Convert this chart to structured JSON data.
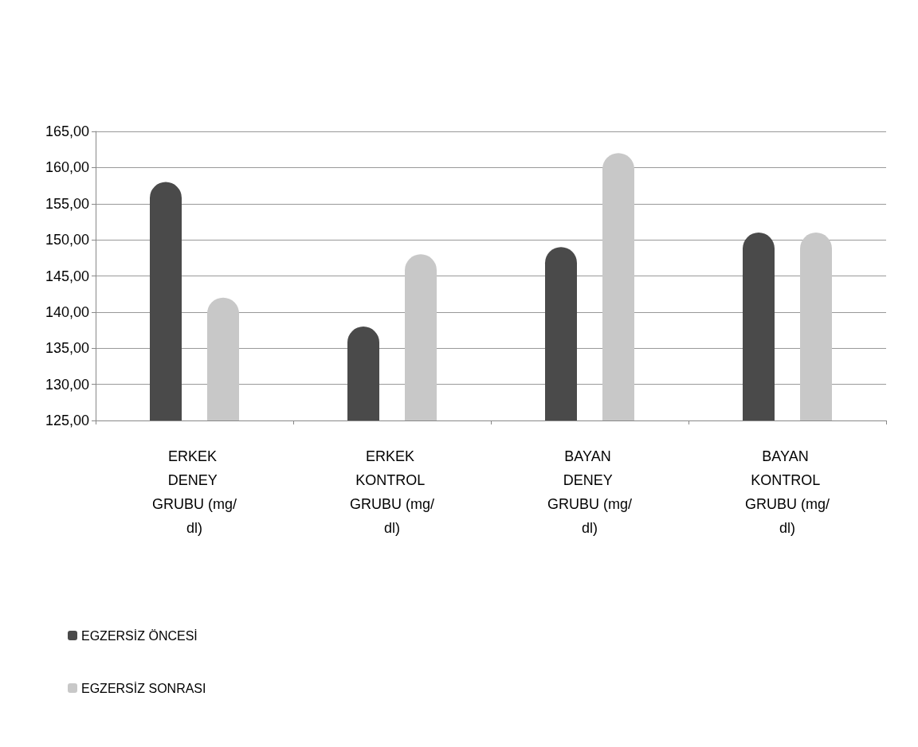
{
  "chart_data": {
    "type": "bar",
    "categories": [
      "ERKEK DENEY GRUBU (mg/dl)",
      "ERKEK KONTROL GRUBU (mg/dl)",
      "BAYAN DENEY GRUBU (mg/dl)",
      "BAYAN KONTROL GRUBU (mg/dl)"
    ],
    "series": [
      {
        "name": "EGZERSİZ ÖNCESİ",
        "color": "#4a4a4a",
        "values": [
          158,
          138,
          149,
          151
        ]
      },
      {
        "name": "EGZERSİZ SONRASI",
        "color": "#c8c8c8",
        "values": [
          142,
          148,
          162,
          151
        ]
      }
    ],
    "ylim": [
      125,
      165
    ],
    "yticks": [
      {
        "value": 125,
        "label": "125,00"
      },
      {
        "value": 130,
        "label": "130,00"
      },
      {
        "value": 135,
        "label": "135,00"
      },
      {
        "value": 140,
        "label": "140,00"
      },
      {
        "value": 145,
        "label": "145,00"
      },
      {
        "value": 150,
        "label": "150,00"
      },
      {
        "value": 155,
        "label": "155,00"
      },
      {
        "value": 160,
        "label": "160,00"
      },
      {
        "value": 165,
        "label": "165,00"
      }
    ],
    "grid": "y",
    "legend": "bottom left"
  }
}
